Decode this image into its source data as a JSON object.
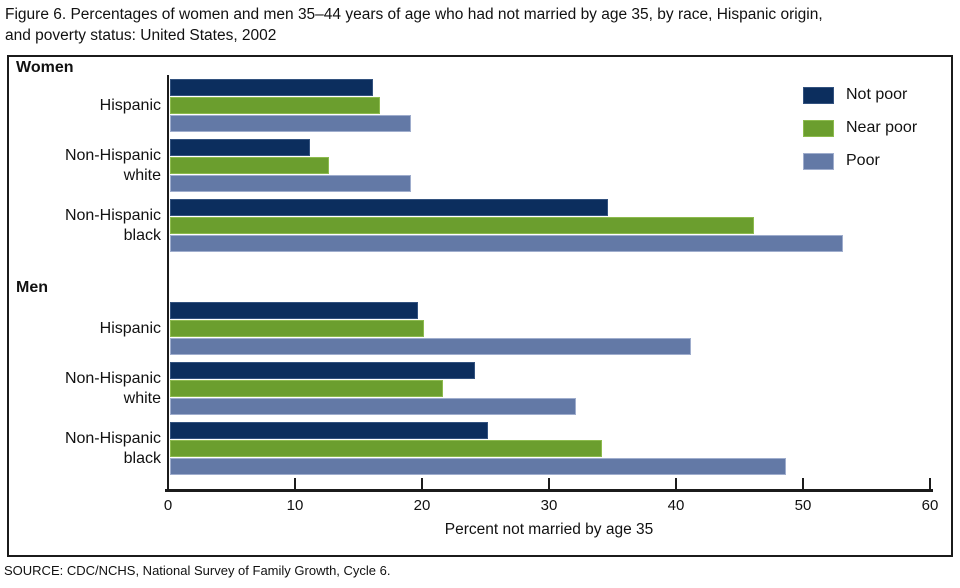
{
  "header": {
    "lines": [
      "Figure 6. Percentages of women and men 35–44 years of age who had not married by age 35, by race, Hispanic origin,",
      "and poverty status: United States, 2002"
    ]
  },
  "source": "SOURCE: CDC/NCHS, National Survey of Family Growth, Cycle 6.",
  "colors": {
    "not_poor": "#0c2e5e",
    "not_poor_border": "#33527f",
    "near_poor": "#6b9e2e",
    "near_poor_border": "#8dbb4e",
    "poor": "#6379a6",
    "poor_border": "#9fadcd",
    "axis": "#1b1b1b"
  },
  "chart_data": {
    "type": "bar",
    "orientation": "horizontal",
    "title": "Figure 6. Percentages of women and men 35–44 years of age who had not married by age 35, by race, Hispanic origin, and poverty status: United States, 2002",
    "xlabel": "Percent not married by age 35",
    "xlim": [
      0,
      60
    ],
    "xticks": [
      0,
      10,
      20,
      30,
      40,
      50,
      60
    ],
    "grid": false,
    "legend_position": "top-right",
    "series_names": [
      "Not poor",
      "Near poor",
      "Poor"
    ],
    "groups": [
      {
        "section": "Women",
        "categories": [
          {
            "label": "Hispanic",
            "values": [
              16,
              16.5,
              19
            ]
          },
          {
            "label": "Non-Hispanic white",
            "values": [
              11,
              12.5,
              19
            ]
          },
          {
            "label": "Non-Hispanic black",
            "values": [
              34.5,
              46,
              53
            ]
          }
        ]
      },
      {
        "section": "Men",
        "categories": [
          {
            "label": "Hispanic",
            "values": [
              19.5,
              20,
              41
            ]
          },
          {
            "label": "Non-Hispanic white",
            "values": [
              24,
              21.5,
              32
            ]
          },
          {
            "label": "Non-Hispanic black",
            "values": [
              25,
              34,
              48.5
            ]
          }
        ]
      }
    ],
    "legend": [
      {
        "label": "Not poor"
      },
      {
        "label": "Near poor"
      },
      {
        "label": "Poor"
      }
    ]
  }
}
